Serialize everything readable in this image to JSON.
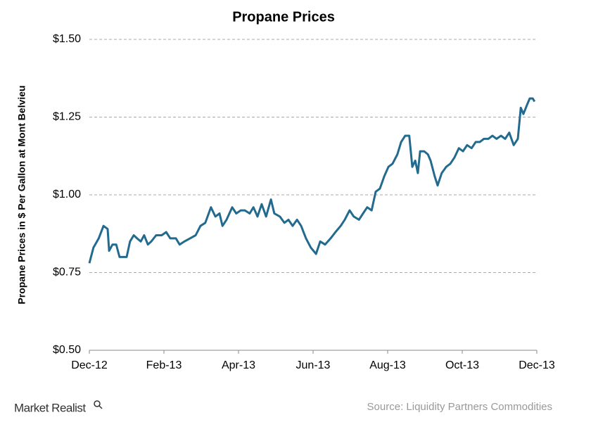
{
  "chart_data": {
    "type": "line",
    "title": "Propane Prices",
    "y_label": "Propane Prices in $ Per Gallon at Mont Belvieu",
    "source": "Source: Liquidity Partners Commodities",
    "brand": "Market Realist",
    "xlim": [
      0,
      12
    ],
    "xticks": [
      {
        "value": 0,
        "label": "Dec-12"
      },
      {
        "value": 2,
        "label": "Feb-13"
      },
      {
        "value": 4,
        "label": "Apr-13"
      },
      {
        "value": 6,
        "label": "Jun-13"
      },
      {
        "value": 8,
        "label": "Aug-13"
      },
      {
        "value": 10,
        "label": "Oct-13"
      },
      {
        "value": 12,
        "label": "Dec-13"
      }
    ],
    "ylim": [
      0.5,
      1.5
    ],
    "yticks": [
      {
        "value": 0.5,
        "label": "$0.50"
      },
      {
        "value": 0.75,
        "label": "$0.75"
      },
      {
        "value": 1.0,
        "label": "$1.00"
      },
      {
        "value": 1.25,
        "label": "$1.25"
      },
      {
        "value": 1.5,
        "label": "$1.50"
      }
    ],
    "grid": true,
    "x": [
      0,
      0.11,
      0.25,
      0.38,
      0.49,
      0.53,
      0.62,
      0.72,
      0.81,
      0.91,
      1,
      1.09,
      1.19,
      1.28,
      1.38,
      1.47,
      1.57,
      1.66,
      1.79,
      1.94,
      2.06,
      2.17,
      2.32,
      2.42,
      2.55,
      2.7,
      2.85,
      2.98,
      3.11,
      3.26,
      3.38,
      3.49,
      3.57,
      3.68,
      3.83,
      3.94,
      4.06,
      4.17,
      4.3,
      4.4,
      4.51,
      4.62,
      4.74,
      4.87,
      4.96,
      5.11,
      5.23,
      5.34,
      5.45,
      5.57,
      5.68,
      5.81,
      5.94,
      6.08,
      6.19,
      6.32,
      6.47,
      6.6,
      6.74,
      6.85,
      6.98,
      7.09,
      7.23,
      7.34,
      7.45,
      7.57,
      7.68,
      7.79,
      7.91,
      8.02,
      8.13,
      8.26,
      8.36,
      8.47,
      8.58,
      8.66,
      8.74,
      8.81,
      8.87,
      8.98,
      9.08,
      9.15,
      9.26,
      9.34,
      9.45,
      9.57,
      9.68,
      9.79,
      9.91,
      10.02,
      10.13,
      10.25,
      10.36,
      10.47,
      10.58,
      10.7,
      10.81,
      10.92,
      11.04,
      11.15,
      11.26,
      11.38,
      11.49,
      11.57,
      11.64,
      11.74,
      11.81,
      11.89,
      11.94
    ],
    "series": [
      {
        "name": "Propane",
        "color": "#236b8e",
        "values": [
          0.78,
          0.83,
          0.86,
          0.9,
          0.89,
          0.82,
          0.84,
          0.84,
          0.8,
          0.8,
          0.8,
          0.85,
          0.87,
          0.86,
          0.85,
          0.87,
          0.84,
          0.85,
          0.87,
          0.87,
          0.88,
          0.86,
          0.86,
          0.84,
          0.85,
          0.86,
          0.87,
          0.9,
          0.91,
          0.96,
          0.93,
          0.94,
          0.9,
          0.92,
          0.96,
          0.94,
          0.95,
          0.95,
          0.94,
          0.96,
          0.93,
          0.97,
          0.93,
          0.985,
          0.94,
          0.93,
          0.91,
          0.92,
          0.9,
          0.92,
          0.9,
          0.86,
          0.83,
          0.81,
          0.85,
          0.84,
          0.86,
          0.88,
          0.9,
          0.92,
          0.95,
          0.93,
          0.92,
          0.94,
          0.96,
          0.95,
          1.01,
          1.02,
          1.06,
          1.09,
          1.1,
          1.13,
          1.17,
          1.19,
          1.19,
          1.09,
          1.11,
          1.07,
          1.14,
          1.14,
          1.13,
          1.11,
          1.06,
          1.03,
          1.07,
          1.09,
          1.1,
          1.12,
          1.15,
          1.14,
          1.16,
          1.15,
          1.17,
          1.17,
          1.18,
          1.18,
          1.19,
          1.18,
          1.19,
          1.18,
          1.2,
          1.16,
          1.18,
          1.28,
          1.26,
          1.29,
          1.31,
          1.31,
          1.3
        ]
      }
    ]
  }
}
